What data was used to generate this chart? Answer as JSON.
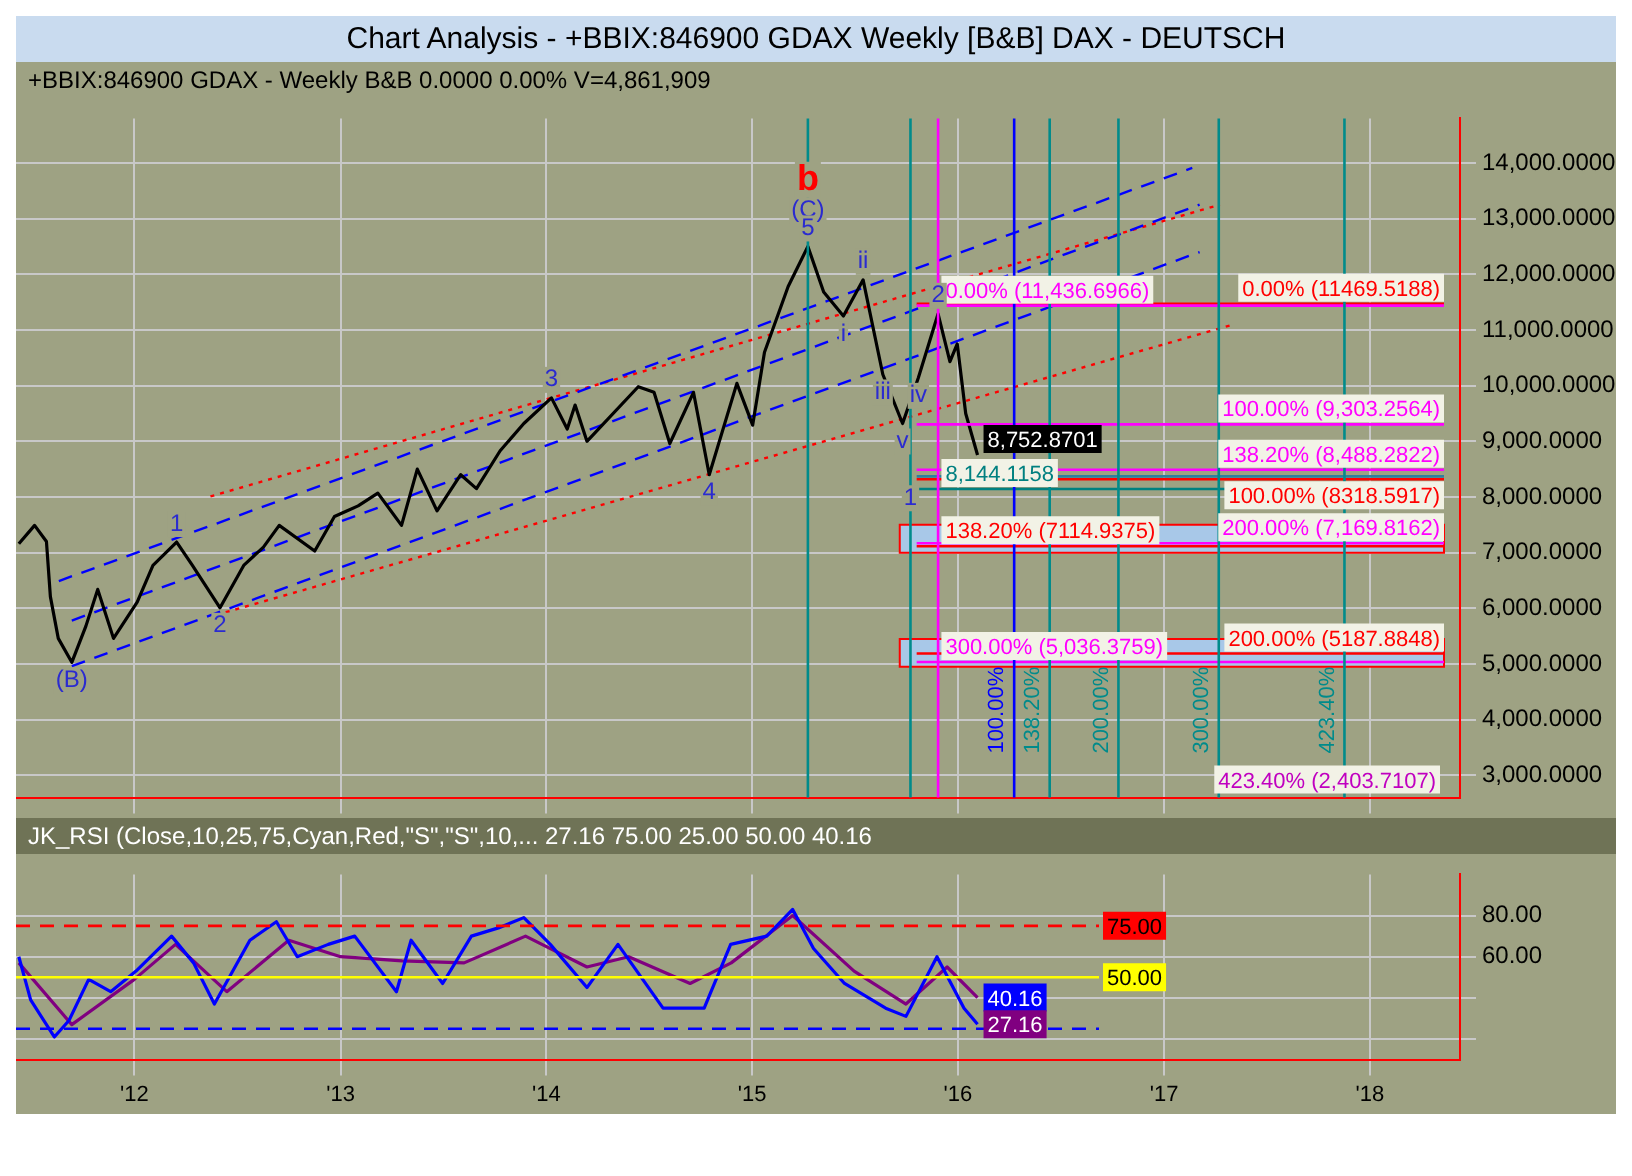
{
  "chart_data": [
    {
      "type": "line",
      "title": "Chart Analysis - +BBIX:846900 GDAX Weekly [B&B] DAX - DEUTSCH",
      "subtitle": "+BBIX:846900 GDAX - Weekly  B&B  0.0000  0.00%  V=4,861,909",
      "xlim": [
        "2011-06-05",
        "2018-06-10"
      ],
      "xticks": [
        {
          "value": "2012-01-01",
          "label": null
        },
        {
          "value": "2013-01-01",
          "label": null
        },
        {
          "value": "2014-01-01",
          "label": null
        },
        {
          "value": "2015-01-01",
          "label": null
        },
        {
          "value": "2016-01-01",
          "label": null
        },
        {
          "value": "2017-01-01",
          "label": null
        },
        {
          "value": "2018-01-01",
          "label": null
        }
      ],
      "ylim": [
        2600,
        14800
      ],
      "yticks": [
        {
          "value": 3000,
          "label": "3,000.0000"
        },
        {
          "value": 4000,
          "label": "4,000.0000"
        },
        {
          "value": 5000,
          "label": "5,000.0000"
        },
        {
          "value": 6000,
          "label": "6,000.0000"
        },
        {
          "value": 7000,
          "label": "7,000.0000"
        },
        {
          "value": 8000,
          "label": "8,000.0000"
        },
        {
          "value": 9000,
          "label": "9,000.0000"
        },
        {
          "value": 10000,
          "label": "10,000.0000"
        },
        {
          "value": 11000,
          "label": "11,000.0000"
        },
        {
          "value": 12000,
          "label": "12,000.0000"
        },
        {
          "value": 13000,
          "label": "13,000.0000"
        },
        {
          "value": 14000,
          "label": "14,000.0000"
        }
      ],
      "tick_labels": "y",
      "grid": true,
      "legend": false,
      "marker": "none",
      "series": [
        {
          "color": "#000000",
          "line_style": "solid",
          "x": [
            "2011-06-10",
            "2011-07-08",
            "2011-07-29",
            "2011-08-05",
            "2011-08-19",
            "2011-09-12",
            "2011-10-07",
            "2011-10-28",
            "2011-11-25",
            "2012-01-06",
            "2012-02-03",
            "2012-03-16",
            "2012-04-13",
            "2012-06-01",
            "2012-07-13",
            "2012-08-17",
            "2012-09-14",
            "2012-11-16",
            "2012-12-21",
            "2013-02-01",
            "2013-03-08",
            "2013-04-19",
            "2013-05-17",
            "2013-06-21",
            "2013-08-02",
            "2013-08-30",
            "2013-10-11",
            "2013-11-22",
            "2014-01-10",
            "2014-02-07",
            "2014-02-21",
            "2014-03-14",
            "2014-06-13",
            "2014-07-11",
            "2014-08-08",
            "2014-09-19",
            "2014-10-17",
            "2014-12-05",
            "2015-01-02",
            "2015-01-23",
            "2015-03-06",
            "2015-04-10",
            "2015-05-08",
            "2015-06-12",
            "2015-07-17",
            "2015-08-21",
            "2015-09-25",
            "2015-10-23",
            "2015-11-27",
            "2015-12-18",
            "2015-12-31",
            "2016-01-15",
            "2016-02-05"
          ],
          "values": [
            7160,
            7490,
            7200,
            6210,
            5460,
            5030,
            5680,
            6340,
            5460,
            6110,
            6770,
            7190,
            6770,
            6010,
            6770,
            7100,
            7490,
            7030,
            7650,
            7840,
            8070,
            7490,
            8500,
            7750,
            8400,
            8150,
            8830,
            9320,
            9780,
            9220,
            9650,
            9000,
            9980,
            9880,
            8960,
            9880,
            8400,
            10040,
            9290,
            10600,
            11780,
            12500,
            11680,
            11250,
            11900,
            10200,
            9320,
            10140,
            11290,
            10430,
            10750,
            9500,
            8752.8701
          ]
        },
        {
          "color": "#0000ff",
          "line_style": "dashed",
          "x": [
            "2011-09-12",
            "2017-03-05"
          ],
          "values": [
            4960,
            12400
          ]
        },
        {
          "color": "#0000ff",
          "line_style": "dashed",
          "x": [
            "2011-09-12",
            "2017-03-05"
          ],
          "values": [
            5780,
            13250
          ]
        },
        {
          "color": "#0000ff",
          "line_style": "dashed",
          "x": [
            "2011-08-20",
            "2017-02-20"
          ],
          "values": [
            6490,
            13910
          ]
        },
        {
          "color": "#ff0000",
          "line_style": "dotted",
          "x": [
            "2012-05-15",
            "2017-04-10"
          ],
          "values": [
            8010,
            13250
          ]
        },
        {
          "color": "#ff0000",
          "line_style": "dotted",
          "x": [
            "2012-05-25",
            "2017-05-01"
          ],
          "values": [
            5880,
            11090
          ]
        }
      ],
      "bands": [
        {
          "axis": "y",
          "from": 7000,
          "to": 7500,
          "label": null,
          "color": "#a8c8e8"
        },
        {
          "axis": "y",
          "from": 4950,
          "to": 5450,
          "label": null,
          "color": "#a8c8e8"
        }
      ],
      "ref_lines": [
        {
          "axis": "y",
          "value": 11469.5188,
          "label": "0.00% (11469.5188)",
          "color": "#ff0000"
        },
        {
          "axis": "y",
          "value": 11436.6966,
          "label": "0.00% (11,436.6966)",
          "color": "#ff00ff"
        },
        {
          "axis": "y",
          "value": 9303.2564,
          "label": "100.00% (9,303.2564)",
          "color": "#ff00ff"
        },
        {
          "axis": "y",
          "value": 8488.2822,
          "label": "138.20% (8,488.2822)",
          "color": "#ff00ff"
        },
        {
          "axis": "y",
          "value": 8144.1158,
          "label": "8,144.1158",
          "color": "#008080"
        },
        {
          "axis": "y",
          "value": 8318.5917,
          "label": "100.00% (8318.5917)",
          "color": "#ff0000"
        },
        {
          "axis": "y",
          "value": 8370,
          "label": null,
          "color": "#2f7f9f"
        },
        {
          "axis": "y",
          "value": 7169.8162,
          "label": "200.00% (7,169.8162)",
          "color": "#ff00ff"
        },
        {
          "axis": "y",
          "value": 7114.9375,
          "label": "138.20% (7114.9375)",
          "color": "#ff0000"
        },
        {
          "axis": "y",
          "value": 5187.8848,
          "label": "200.00% (5187.8848)",
          "color": "#ff0000"
        },
        {
          "axis": "y",
          "value": 5036.3759,
          "label": "300.00% (5,036.3759)",
          "color": "#ff00ff"
        },
        {
          "axis": "x",
          "value": "2015-04-10",
          "label": null,
          "color": "#008b8b"
        },
        {
          "axis": "x",
          "value": "2015-10-09",
          "label": null,
          "color": "#008b8b"
        },
        {
          "axis": "x",
          "value": "2015-11-27",
          "label": null,
          "color": "#ff00ff"
        },
        {
          "axis": "x",
          "value": "2016-04-10",
          "label": "100.00%",
          "color": "#0000ff"
        },
        {
          "axis": "x",
          "value": "2016-06-12",
          "label": "138.20%",
          "color": "#008b8b"
        },
        {
          "axis": "x",
          "value": "2016-10-12",
          "label": "200.00%",
          "color": "#008b8b"
        },
        {
          "axis": "x",
          "value": "2017-04-08",
          "label": "300.00%",
          "color": "#008b8b"
        },
        {
          "axis": "x",
          "value": "2017-11-17",
          "label": "423.40%",
          "color": "#008b8b"
        }
      ],
      "annotations": [
        "423.40% (2,403.7107)",
        {
          "text": "8,752.8701",
          "x": "2016-02-05",
          "y": 8752.8701
        },
        {
          "text": "b",
          "x": "2015-04-10",
          "y": 13700
        },
        {
          "text": "(C)",
          "x": "2015-04-10",
          "y": 13150
        },
        {
          "text": "5",
          "x": "2015-04-10",
          "y": 12500
        },
        {
          "text": "(B)",
          "x": "2011-09-12",
          "y": 5030
        },
        {
          "text": "1",
          "x": "2012-03-16",
          "y": 7190
        },
        {
          "text": "2",
          "x": "2012-06-01",
          "y": 6010
        },
        {
          "text": "3",
          "x": "2014-01-10",
          "y": 9780
        },
        {
          "text": "4",
          "x": "2014-10-17",
          "y": 8400
        },
        {
          "text": "i",
          "x": "2015-06-12",
          "y": 11250
        },
        {
          "text": "ii",
          "x": "2015-07-17",
          "y": 11900
        },
        {
          "text": "iii",
          "x": "2015-08-21",
          "y": 10200
        },
        {
          "text": "iv",
          "x": "2015-10-23",
          "y": 10140
        },
        {
          "text": "v",
          "x": "2015-09-25",
          "y": 9320
        },
        {
          "text": "1",
          "x": "2015-10-09",
          "y": 8300
        },
        {
          "text": "2",
          "x": "2015-11-27",
          "y": 11290
        }
      ]
    },
    {
      "type": "line",
      "title": "JK_RSI (Close,10,25,75,Cyan,Red,\"S\",\"S\",10,...  27.16  75.00  25.00  50.00  40.16",
      "xlim": [
        "2011-06-05",
        "2018-06-10"
      ],
      "xticks": [
        {
          "value": "2012-01-01",
          "label": "'12"
        },
        {
          "value": "2013-01-01",
          "label": "'13"
        },
        {
          "value": "2014-01-01",
          "label": "'14"
        },
        {
          "value": "2015-01-01",
          "label": "'15"
        },
        {
          "value": "2016-01-01",
          "label": "'16"
        },
        {
          "value": "2017-01-01",
          "label": "'17"
        },
        {
          "value": "2018-01-01",
          "label": "'18"
        }
      ],
      "ylim": [
        10,
        100
      ],
      "yticks": [
        {
          "value": 20,
          "label": null
        },
        {
          "value": 40,
          "label": null
        },
        {
          "value": 60,
          "label": "60.00"
        },
        {
          "value": 80,
          "label": "80.00"
        }
      ],
      "grid": true,
      "legend": false,
      "marker": "none",
      "series": [
        {
          "color": "#0000ff",
          "line_style": "solid",
          "x": [
            "2011-06-10",
            "2011-07-01",
            "2011-08-12",
            "2011-09-07",
            "2011-10-12",
            "2011-11-20",
            "2012-01-04",
            "2012-03-07",
            "2012-04-15",
            "2012-05-22",
            "2012-07-24",
            "2012-09-09",
            "2012-10-16",
            "2012-12-10",
            "2013-01-26",
            "2013-04-10",
            "2013-05-06",
            "2013-07-01",
            "2013-08-21",
            "2013-10-08",
            "2013-11-22",
            "2014-01-08",
            "2014-03-14",
            "2014-05-08",
            "2014-07-27",
            "2014-10-08",
            "2014-11-24",
            "2015-01-27",
            "2015-03-14",
            "2015-04-20",
            "2015-06-14",
            "2015-08-26",
            "2015-10-01",
            "2015-11-25",
            "2016-01-12",
            "2016-02-05"
          ],
          "values": [
            60,
            39,
            21,
            29,
            49,
            43,
            53,
            70,
            57,
            37,
            68,
            77,
            60,
            66,
            70,
            43,
            68,
            47,
            70,
            74,
            79,
            66,
            45,
            66,
            35,
            35,
            66,
            70,
            83,
            64,
            47,
            35,
            31,
            60,
            35,
            27.16
          ]
        },
        {
          "color": "#800080",
          "line_style": "solid",
          "x": [
            "2011-06-10",
            "2011-09-12",
            "2012-01-01",
            "2012-03-14",
            "2012-06-13",
            "2012-10-01",
            "2013-01-01",
            "2013-04-20",
            "2013-08-08",
            "2013-11-25",
            "2014-03-14",
            "2014-05-27",
            "2014-09-13",
            "2014-11-25",
            "2015-03-14",
            "2015-07-01",
            "2015-10-01",
            "2015-12-13",
            "2016-02-05"
          ],
          "values": [
            57,
            27,
            49,
            66,
            43,
            68,
            60,
            58,
            57,
            70,
            55,
            60,
            47,
            57,
            80,
            53,
            37,
            55,
            40.16
          ]
        }
      ],
      "ref_lines": [
        {
          "axis": "y",
          "value": 75,
          "label": "75.00",
          "color": "#ff0000",
          "line_style": "dashed"
        },
        {
          "axis": "y",
          "value": 50,
          "label": "50.00",
          "color": "#ffff00",
          "line_style": "solid"
        },
        {
          "axis": "y",
          "value": 25,
          "label": null,
          "color": "#0000ff",
          "line_style": "dashed"
        }
      ],
      "annotations": [
        {
          "text": "40.16",
          "x": "2016-02-05",
          "y": 40.16
        },
        {
          "text": "27.16",
          "x": "2016-02-05",
          "y": 27.16
        }
      ]
    }
  ]
}
